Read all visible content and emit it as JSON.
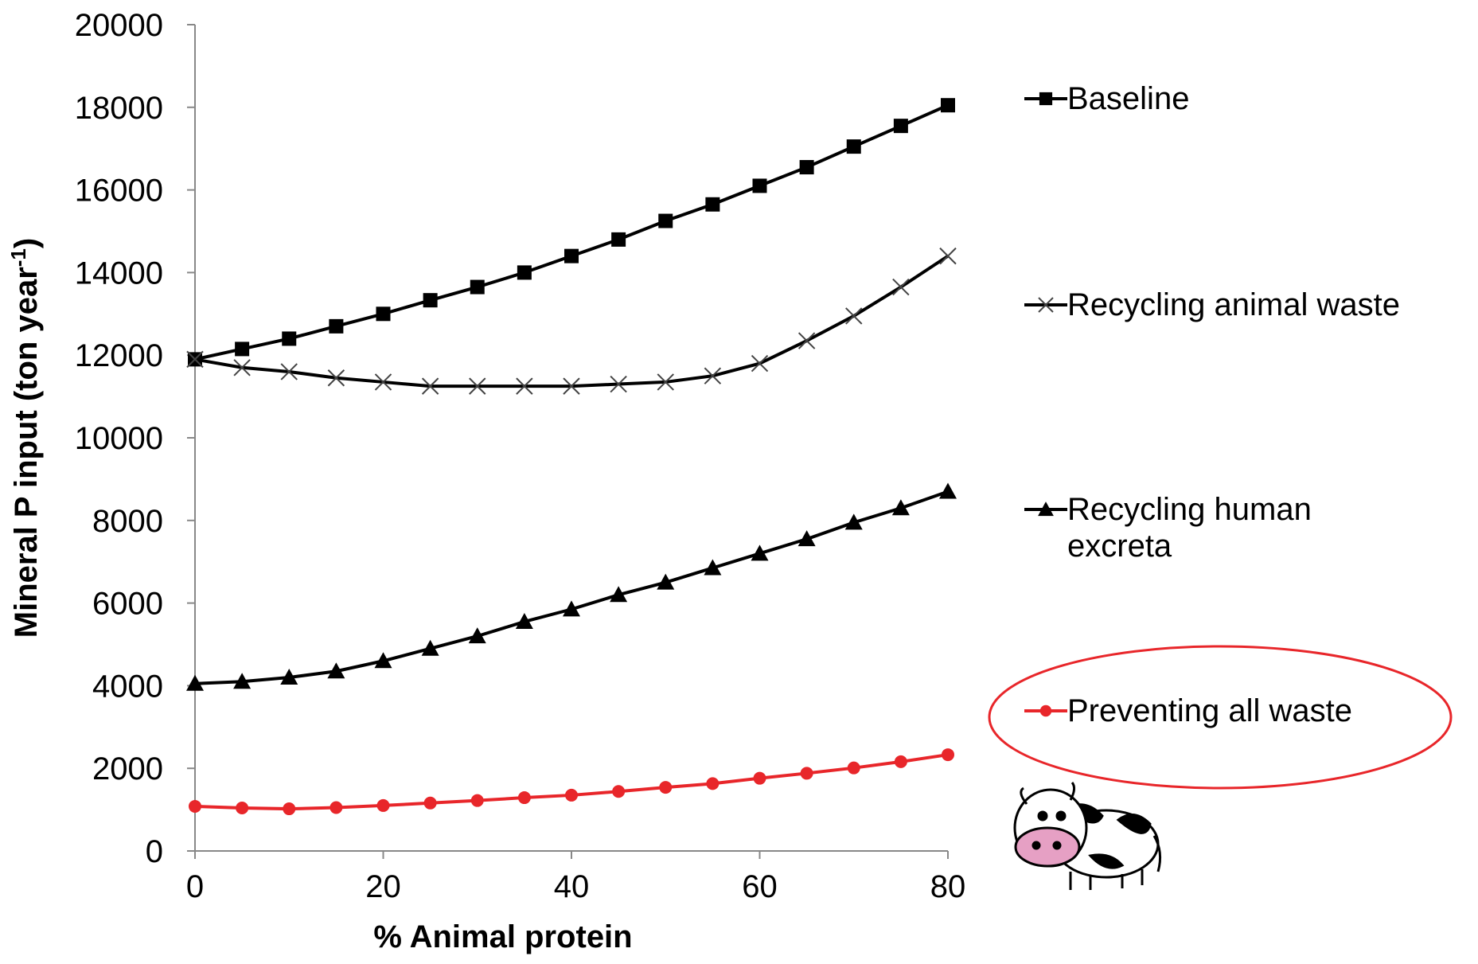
{
  "chart_data": {
    "type": "line",
    "x_label": "% Animal protein",
    "y_label": "Mineral P  input (ton year",
    "y_label_sup": "-1",
    "y_label_end": ")",
    "x": [
      0,
      5,
      10,
      15,
      20,
      25,
      30,
      35,
      40,
      45,
      50,
      55,
      60,
      65,
      70,
      75,
      80
    ],
    "series": [
      {
        "name": "Baseline",
        "color": "#000000",
        "marker": "square",
        "values": [
          11900,
          12150,
          12400,
          12700,
          13000,
          13330,
          13650,
          14000,
          14400,
          14800,
          15250,
          15650,
          16100,
          16550,
          17050,
          17550,
          18050
        ]
      },
      {
        "name": "Recycling animal waste",
        "color": "#000000",
        "marker": "x",
        "values": [
          11900,
          11700,
          11600,
          11450,
          11350,
          11250,
          11250,
          11250,
          11250,
          11300,
          11350,
          11500,
          11800,
          12350,
          12950,
          13650,
          14400
        ]
      },
      {
        "name": "Recycling human excreta",
        "color": "#000000",
        "marker": "triangle",
        "values": [
          4050,
          4100,
          4200,
          4350,
          4600,
          4900,
          5200,
          5550,
          5850,
          6200,
          6500,
          6850,
          7200,
          7550,
          7950,
          8300,
          8700
        ]
      },
      {
        "name": "Preventing all waste",
        "color": "#e8262a",
        "marker": "circle",
        "values": [
          1080,
          1040,
          1020,
          1050,
          1100,
          1160,
          1220,
          1290,
          1350,
          1440,
          1540,
          1630,
          1760,
          1880,
          2010,
          2160,
          2330
        ]
      }
    ],
    "xlim": [
      0,
      80
    ],
    "xticks": [
      0,
      20,
      40,
      60,
      80
    ],
    "ylim": [
      0,
      20000
    ],
    "yticks": [
      0,
      2000,
      4000,
      6000,
      8000,
      10000,
      12000,
      14000,
      16000,
      18000,
      20000
    ],
    "legend": "right"
  }
}
